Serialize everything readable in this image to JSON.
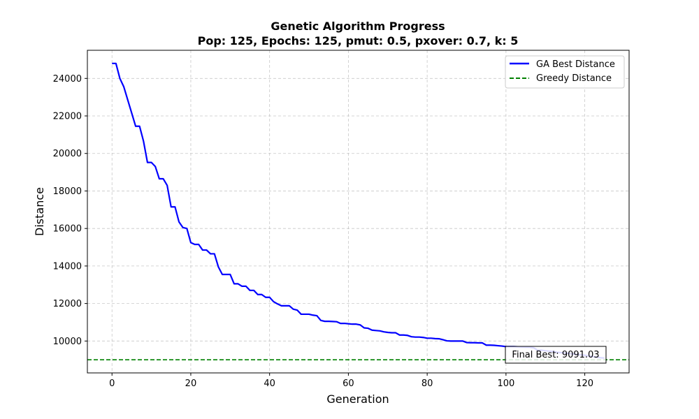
{
  "chart_data": {
    "type": "line",
    "title": "Genetic Algorithm Progress",
    "subtitle": "Pop: 125, Epochs: 125, pmut: 0.5, pxover: 0.7, k: 5",
    "xlabel": "Generation",
    "ylabel": "Distance",
    "xlim": [
      -6.25,
      131.25
    ],
    "ylim": [
      8300,
      25500
    ],
    "xticks": [
      0,
      20,
      40,
      60,
      80,
      100,
      120
    ],
    "yticks": [
      10000,
      12000,
      14000,
      16000,
      18000,
      20000,
      22000,
      24000
    ],
    "grid": true,
    "legend_position": "top-right",
    "series": [
      {
        "name": "GA Best Distance",
        "color": "#0000ff",
        "style": "solid",
        "x": [
          0,
          1,
          2,
          3,
          4,
          5,
          6,
          7,
          8,
          9,
          10,
          11,
          12,
          13,
          14,
          15,
          16,
          17,
          18,
          19,
          20,
          21,
          22,
          23,
          24,
          25,
          26,
          27,
          28,
          29,
          30,
          31,
          32,
          33,
          34,
          35,
          36,
          37,
          38,
          39,
          40,
          41,
          42,
          43,
          44,
          45,
          46,
          47,
          48,
          49,
          50,
          51,
          52,
          53,
          54,
          55,
          56,
          57,
          58,
          59,
          60,
          61,
          62,
          63,
          64,
          65,
          66,
          67,
          68,
          69,
          70,
          71,
          72,
          73,
          74,
          75,
          76,
          77,
          78,
          79,
          80,
          81,
          82,
          83,
          84,
          85,
          86,
          87,
          88,
          89,
          90,
          91,
          92,
          93,
          94,
          95,
          96,
          97,
          98,
          99,
          100,
          101,
          102,
          103,
          104,
          105,
          106,
          107,
          108,
          109,
          110,
          111,
          112,
          113,
          114,
          115,
          116,
          117,
          118,
          119,
          120,
          121,
          122,
          123,
          124,
          125
        ],
        "y": [
          24800,
          24800,
          24000,
          23550,
          22850,
          22150,
          21450,
          21450,
          20650,
          19520,
          19520,
          19300,
          18650,
          18650,
          18300,
          17150,
          17150,
          16350,
          16050,
          16000,
          15250,
          15150,
          15150,
          14850,
          14850,
          14650,
          14650,
          13950,
          13550,
          13550,
          13550,
          13050,
          13050,
          12920,
          12920,
          12700,
          12700,
          12480,
          12480,
          12330,
          12330,
          12100,
          11980,
          11880,
          11880,
          11880,
          11700,
          11650,
          11430,
          11430,
          11430,
          11380,
          11350,
          11100,
          11050,
          11050,
          11040,
          11030,
          10940,
          10940,
          10920,
          10900,
          10900,
          10860,
          10700,
          10680,
          10580,
          10560,
          10540,
          10490,
          10460,
          10440,
          10440,
          10320,
          10320,
          10300,
          10230,
          10210,
          10210,
          10190,
          10150,
          10150,
          10130,
          10120,
          10070,
          10010,
          10000,
          10000,
          10000,
          10000,
          9920,
          9910,
          9910,
          9900,
          9900,
          9780,
          9780,
          9770,
          9750,
          9730,
          9700,
          9700,
          9700,
          9690,
          9680,
          9670,
          9670,
          9640,
          9520,
          9510,
          9480,
          9460,
          9440,
          9400,
          9380,
          9360,
          9340,
          9310,
          9280,
          9260,
          9240,
          9200,
          9170,
          9140,
          9110,
          9091.03
        ]
      },
      {
        "name": "Greedy Distance",
        "color": "#008000",
        "style": "dashed",
        "hline": 9000
      }
    ],
    "annotation": {
      "text": "Final Best: 9091.03",
      "x": 100,
      "y": 9091.03
    }
  }
}
